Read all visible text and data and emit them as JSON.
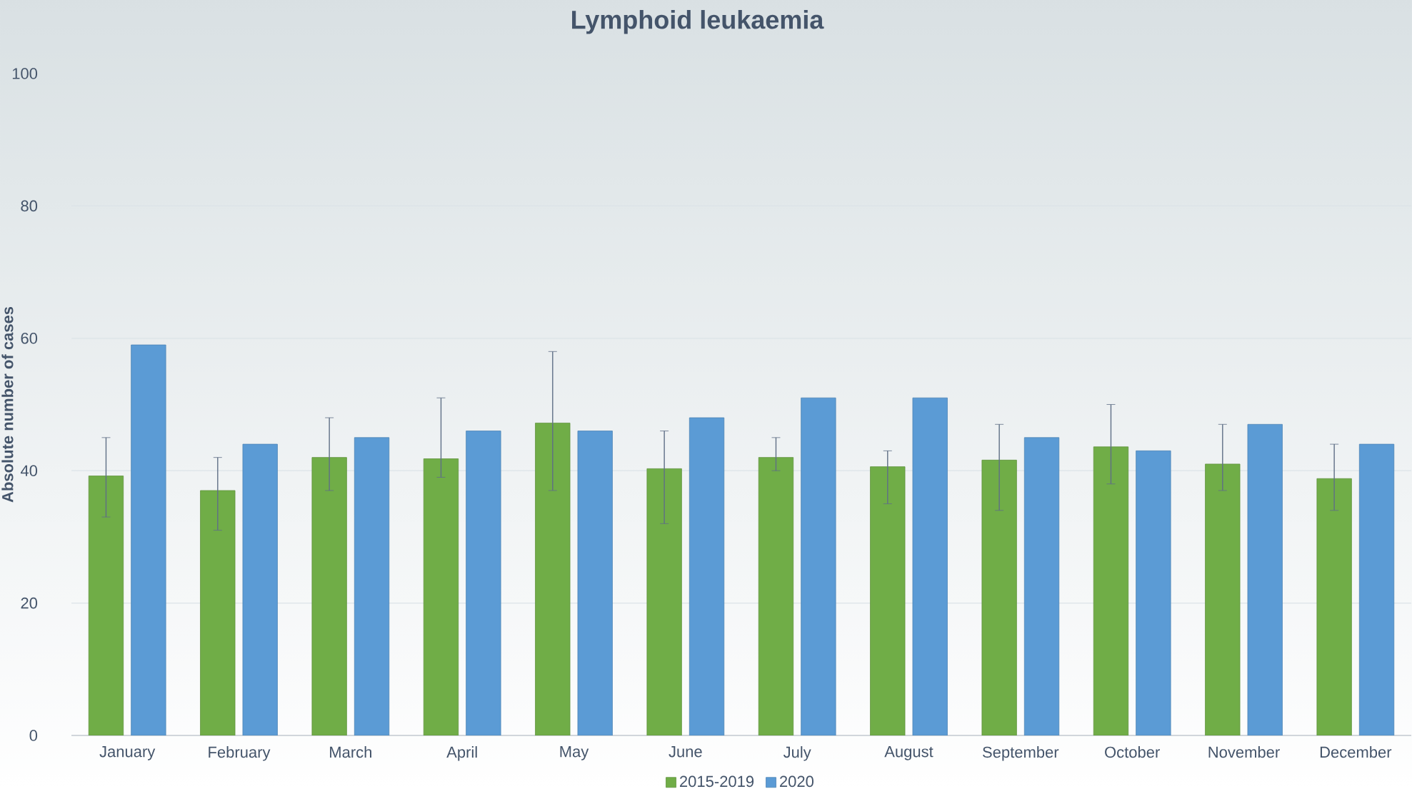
{
  "chart_data": {
    "type": "bar",
    "title": "Lymphoid leukaemia",
    "ylabel": "Absolute number of cases",
    "categories": [
      "January",
      "February",
      "March",
      "April",
      "May",
      "June",
      "July",
      "August",
      "September",
      "October",
      "November",
      "December"
    ],
    "series": [
      {
        "name": "2015-2019",
        "color": "#70ad47",
        "values": [
          39.2,
          37,
          42,
          41.8,
          47.2,
          40.3,
          42,
          40.6,
          41.6,
          43.6,
          41,
          38.8
        ],
        "errors": [
          [
            33,
            45
          ],
          [
            31,
            42
          ],
          [
            37,
            48
          ],
          [
            39,
            51
          ],
          [
            37,
            58
          ],
          [
            32,
            46
          ],
          [
            40,
            45
          ],
          [
            35,
            43
          ],
          [
            34,
            47
          ],
          [
            38,
            50
          ],
          [
            37,
            47
          ],
          [
            34,
            44
          ]
        ]
      },
      {
        "name": "2020",
        "color": "#5b9bd5",
        "values": [
          59,
          44,
          45,
          46,
          46,
          48,
          51,
          51,
          45,
          43,
          47,
          44
        ]
      }
    ],
    "ylim": [
      0,
      100
    ],
    "yticks": [
      0,
      20,
      40,
      60,
      80,
      100
    ],
    "grid": "y",
    "legend": "bottom"
  }
}
